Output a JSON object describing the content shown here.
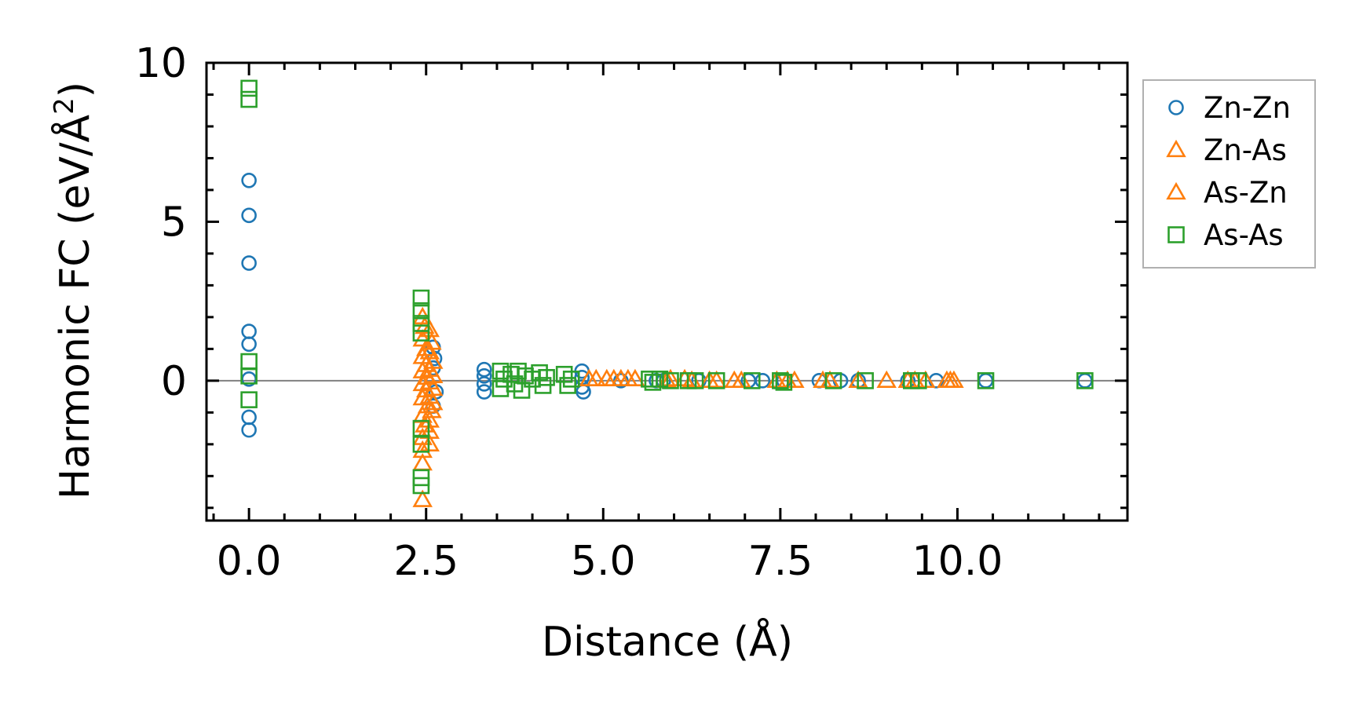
{
  "chart_data": {
    "type": "scatter",
    "title": "",
    "xlabel": "Distance (Å)",
    "ylabel_main": "Harmonic FC (eV/Å",
    "ylabel_sup": "2",
    "ylabel_close": ")",
    "xlim": [
      -0.6,
      12.4
    ],
    "ylim": [
      -4.4,
      10.0
    ],
    "xticks": [
      0.0,
      2.5,
      5.0,
      7.5,
      10.0
    ],
    "xtick_labels": [
      "0.0",
      "2.5",
      "5.0",
      "7.5",
      "10.0"
    ],
    "yticks": [
      0,
      5,
      10
    ],
    "ytick_labels": [
      "0",
      "5",
      "10"
    ],
    "zero_line": true,
    "legend_position": "outside-top-right",
    "series": [
      {
        "name": "Zn-Zn",
        "marker": "circle",
        "color": "#1f77b4",
        "points": [
          [
            0,
            6.3
          ],
          [
            0,
            5.2
          ],
          [
            0,
            3.7
          ],
          [
            0,
            1.55
          ],
          [
            0,
            1.15
          ],
          [
            0,
            0.05
          ],
          [
            0,
            -1.15
          ],
          [
            0,
            -1.55
          ],
          [
            2.6,
            1.05
          ],
          [
            2.62,
            0.7
          ],
          [
            2.6,
            0.4
          ],
          [
            2.64,
            -0.35
          ],
          [
            2.6,
            -0.8
          ],
          [
            3.32,
            0.35
          ],
          [
            3.32,
            0.15
          ],
          [
            3.32,
            -0.1
          ],
          [
            3.32,
            -0.35
          ],
          [
            4.7,
            0.3
          ],
          [
            4.7,
            0.1
          ],
          [
            4.7,
            -0.2
          ],
          [
            4.72,
            -0.35
          ],
          [
            5.25,
            0
          ],
          [
            5.75,
            0
          ],
          [
            5.85,
            0
          ],
          [
            6.35,
            0
          ],
          [
            7.05,
            0
          ],
          [
            7.25,
            0
          ],
          [
            7.55,
            0
          ],
          [
            8.05,
            0
          ],
          [
            8.35,
            0
          ],
          [
            8.6,
            0
          ],
          [
            9.3,
            0
          ],
          [
            9.7,
            0
          ],
          [
            10.4,
            0
          ],
          [
            11.8,
            0
          ]
        ]
      },
      {
        "name": "Zn-As",
        "marker": "triangle",
        "color": "#ff7f0e",
        "points": [
          [
            2.45,
            2.0
          ],
          [
            2.48,
            1.7
          ],
          [
            2.45,
            1.3
          ],
          [
            2.5,
            1.0
          ],
          [
            2.45,
            0.75
          ],
          [
            2.5,
            0.5
          ],
          [
            2.45,
            0.3
          ],
          [
            2.52,
            0.1
          ],
          [
            2.45,
            -0.1
          ],
          [
            2.5,
            -0.3
          ],
          [
            2.45,
            -0.55
          ],
          [
            2.52,
            -0.8
          ],
          [
            2.45,
            -1.1
          ],
          [
            2.48,
            -1.4
          ],
          [
            2.45,
            -1.8
          ],
          [
            2.45,
            -2.2
          ],
          [
            2.45,
            -2.6
          ],
          [
            2.45,
            -3.75
          ],
          [
            4.8,
            0.05
          ],
          [
            5.05,
            0.05
          ],
          [
            5.25,
            0.05
          ],
          [
            5.45,
            0.05
          ],
          [
            5.95,
            0.05
          ],
          [
            6.15,
            0.05
          ],
          [
            6.25,
            0
          ],
          [
            6.6,
            0
          ],
          [
            6.85,
            0
          ],
          [
            7.45,
            0
          ],
          [
            7.7,
            0
          ],
          [
            8.1,
            0
          ],
          [
            8.6,
            0
          ],
          [
            9.3,
            0
          ],
          [
            9.55,
            0
          ],
          [
            9.85,
            0
          ],
          [
            9.95,
            0
          ]
        ]
      },
      {
        "name": "As-Zn",
        "marker": "triangle",
        "color": "#ff7f0e",
        "points": [
          [
            2.55,
            1.6
          ],
          [
            2.58,
            1.2
          ],
          [
            2.55,
            0.9
          ],
          [
            2.6,
            0.6
          ],
          [
            2.55,
            0.35
          ],
          [
            2.6,
            0.15
          ],
          [
            2.55,
            -0.05
          ],
          [
            2.6,
            -0.25
          ],
          [
            2.55,
            -0.5
          ],
          [
            2.6,
            -0.7
          ],
          [
            2.58,
            -0.95
          ],
          [
            2.55,
            -1.25
          ],
          [
            2.55,
            -1.6
          ],
          [
            2.55,
            -2.0
          ],
          [
            4.9,
            0.05
          ],
          [
            5.15,
            0.05
          ],
          [
            5.35,
            0.05
          ],
          [
            5.9,
            0
          ],
          [
            6.5,
            0
          ],
          [
            6.95,
            0
          ],
          [
            7.6,
            0
          ],
          [
            8.2,
            0
          ],
          [
            9.0,
            0
          ],
          [
            9.4,
            0
          ],
          [
            9.9,
            0
          ]
        ]
      },
      {
        "name": "As-As",
        "marker": "square",
        "color": "#2ca02c",
        "points": [
          [
            0,
            9.2
          ],
          [
            0,
            8.85
          ],
          [
            0,
            0.6
          ],
          [
            0,
            0.15
          ],
          [
            0,
            -0.6
          ],
          [
            2.43,
            2.6
          ],
          [
            2.43,
            2.2
          ],
          [
            2.43,
            1.8
          ],
          [
            2.43,
            1.5
          ],
          [
            2.43,
            -1.5
          ],
          [
            2.43,
            -2.0
          ],
          [
            2.43,
            -3.05
          ],
          [
            2.43,
            -3.3
          ],
          [
            3.55,
            0.3
          ],
          [
            3.6,
            0.05
          ],
          [
            3.55,
            -0.25
          ],
          [
            3.7,
            0.2
          ],
          [
            3.75,
            -0.1
          ],
          [
            3.8,
            0.3
          ],
          [
            3.85,
            -0.3
          ],
          [
            3.9,
            0.15
          ],
          [
            4.0,
            0.05
          ],
          [
            4.1,
            0.25
          ],
          [
            4.15,
            -0.15
          ],
          [
            4.2,
            0.1
          ],
          [
            4.45,
            0.2
          ],
          [
            4.5,
            -0.15
          ],
          [
            4.55,
            0.05
          ],
          [
            5.65,
            0.05
          ],
          [
            5.7,
            -0.05
          ],
          [
            5.8,
            0.05
          ],
          [
            5.95,
            0
          ],
          [
            6.2,
            0
          ],
          [
            6.3,
            0
          ],
          [
            6.6,
            0
          ],
          [
            7.1,
            0
          ],
          [
            7.5,
            0
          ],
          [
            7.55,
            -0.05
          ],
          [
            8.25,
            0
          ],
          [
            8.7,
            0
          ],
          [
            9.35,
            0
          ],
          [
            9.45,
            0
          ],
          [
            10.4,
            0
          ],
          [
            11.8,
            0
          ]
        ]
      }
    ]
  }
}
